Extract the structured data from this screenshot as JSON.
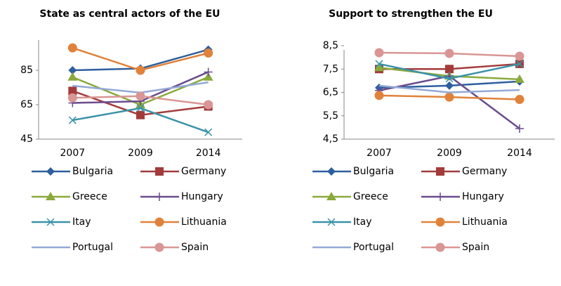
{
  "chart_data": [
    {
      "type": "line",
      "title": "State as central actors of the EU",
      "categories": [
        "2007",
        "2009",
        "2014"
      ],
      "ylim": [
        45,
        105
      ],
      "yticks": [
        45,
        65,
        85
      ],
      "series": [
        {
          "name": "Bulgaria",
          "color": "#2e5f9e",
          "marker": "diamond",
          "values": [
            85,
            86,
            97
          ]
        },
        {
          "name": "Germany",
          "color": "#a23b3a",
          "marker": "square",
          "values": [
            73,
            59,
            64
          ]
        },
        {
          "name": "Greece",
          "color": "#8aaa3c",
          "marker": "triangle",
          "values": [
            81,
            65,
            81
          ]
        },
        {
          "name": "Hungary",
          "color": "#6b4c8e",
          "marker": "plus",
          "values": [
            66,
            67,
            84
          ]
        },
        {
          "name": "Itay",
          "color": "#3a93a8",
          "marker": "x",
          "values": [
            56,
            63,
            49
          ]
        },
        {
          "name": "Lithuania",
          "color": "#e0823a",
          "marker": "circle",
          "values": [
            98,
            85,
            95
          ]
        },
        {
          "name": "Portugal",
          "color": "#94a9d6",
          "marker": "none",
          "values": [
            76,
            72,
            78
          ]
        },
        {
          "name": "Spain",
          "color": "#d99694",
          "marker": "circle",
          "values": [
            69,
            70,
            65
          ]
        }
      ]
    },
    {
      "type": "line",
      "title": "Support to strengthen the EU",
      "categories": [
        "2007",
        "2009",
        "2014"
      ],
      "ylim": [
        4.5,
        8.5
      ],
      "yticks": [
        {
          "value": 4.5,
          "label": "4,5"
        },
        {
          "value": 5.5,
          "label": "5,5"
        },
        {
          "value": 6.5,
          "label": "6,5"
        },
        {
          "value": 7.5,
          "label": "7,5"
        },
        {
          "value": 8.5,
          "label": "8,5"
        }
      ],
      "series": [
        {
          "name": "Bulgaria",
          "color": "#2e5f9e",
          "marker": "diamond",
          "values": [
            6.7,
            6.79,
            6.97
          ]
        },
        {
          "name": "Germany",
          "color": "#a23b3a",
          "marker": "square",
          "values": [
            7.5,
            7.5,
            7.72
          ]
        },
        {
          "name": "Greece",
          "color": "#8aaa3c",
          "marker": "triangle",
          "values": [
            7.56,
            7.2,
            7.06
          ]
        },
        {
          "name": "Hungary",
          "color": "#6b4c8e",
          "marker": "plus",
          "values": [
            6.58,
            7.2,
            4.95
          ]
        },
        {
          "name": "Itay",
          "color": "#3a93a8",
          "marker": "x",
          "values": [
            7.72,
            7.09,
            7.72
          ]
        },
        {
          "name": "Lithuania",
          "color": "#e0823a",
          "marker": "circle",
          "values": [
            6.37,
            6.3,
            6.2
          ]
        },
        {
          "name": "Portugal",
          "color": "#94a9d6",
          "marker": "none",
          "values": [
            6.79,
            6.5,
            6.6
          ]
        },
        {
          "name": "Spain",
          "color": "#d99694",
          "marker": "circle",
          "values": [
            8.2,
            8.17,
            8.05
          ]
        }
      ]
    }
  ]
}
